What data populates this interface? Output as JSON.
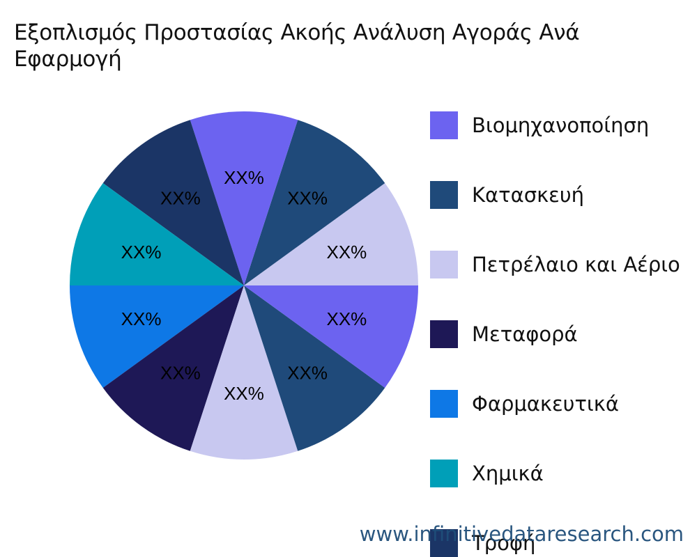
{
  "chart_data": {
    "type": "pie",
    "title": "Εξοπλισμός Προστασίας Ακοής Ανάλυση Αγοράς Ανά Εφαρμογή",
    "legend_position": "right",
    "categories": [
      "Βιομηχανοποίηση",
      "Κατασκευή",
      "Πετρέλαιο και Αέριο",
      "Μεταφορά",
      "Φαρμακευτικά",
      "Χημικά",
      "Τροφή"
    ],
    "colors": [
      "#6c63f0",
      "#1f4a7a",
      "#c8c8f0",
      "#1e1856",
      "#0e78e6",
      "#009fb8",
      "#1b3566"
    ],
    "slices": [
      {
        "category": "Πετρέλαιο και Αέριο",
        "label": "XX%",
        "value": 10,
        "color": "#c8c8f0"
      },
      {
        "category": "Κατασκευή",
        "label": "XX%",
        "value": 10,
        "color": "#1f4a7a"
      },
      {
        "category": "Βιομηχανοποίηση",
        "label": "XX%",
        "value": 10,
        "color": "#6c63f0"
      },
      {
        "category": "Τροφή",
        "label": "XX%",
        "value": 10,
        "color": "#1b3566"
      },
      {
        "category": "Χημικά",
        "label": "XX%",
        "value": 10,
        "color": "#009fb8"
      },
      {
        "category": "Φαρμακευτικά",
        "label": "XX%",
        "value": 10,
        "color": "#0e78e6"
      },
      {
        "category": "Μεταφορά",
        "label": "XX%",
        "value": 10,
        "color": "#1e1856"
      },
      {
        "category": "Πετρέλαιο και Αέριο",
        "label": "XX%",
        "value": 10,
        "color": "#c8c8f0"
      },
      {
        "category": "Κατασκευή",
        "label": "XX%",
        "value": 10,
        "color": "#1f4a7a"
      },
      {
        "category": "Βιομηχανοποίηση",
        "label": "XX%",
        "value": 10,
        "color": "#6c63f0"
      }
    ]
  },
  "legend": {
    "items": [
      {
        "label": "Βιομηχανοποίηση",
        "color": "#6c63f0"
      },
      {
        "label": "Κατασκευή",
        "color": "#1f4a7a"
      },
      {
        "label": "Πετρέλαιο και Αέριο",
        "color": "#c8c8f0"
      },
      {
        "label": "Μεταφορά",
        "color": "#1e1856"
      },
      {
        "label": "Φαρμακευτικά",
        "color": "#0e78e6"
      },
      {
        "label": "Χημικά",
        "color": "#009fb8"
      },
      {
        "label": "Τροφή",
        "color": "#1b3566"
      }
    ]
  },
  "watermark": "www.infinitivedataresearch.com"
}
